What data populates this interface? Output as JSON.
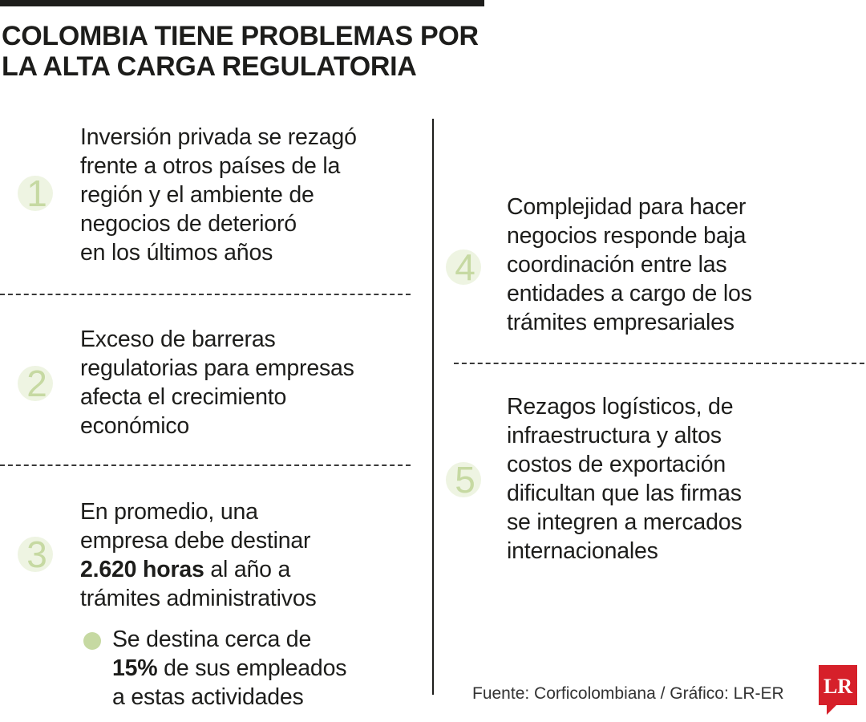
{
  "title": {
    "line1": "COLOMBIA TIENE PROBLEMAS POR",
    "line2": "LA ALTA CARGA REGULATORIA"
  },
  "items": [
    {
      "number": "1",
      "text": "Inversión privada se rezagó frente a otros países de la región y el ambiente de negocios de deterioró en los últimos años",
      "lines": [
        "Inversión privada se rezagó",
        "frente a otros países de la",
        "región y el ambiente de",
        "negocios de deterioró",
        "en los últimos años"
      ]
    },
    {
      "number": "2",
      "lines": [
        "Exceso de barreras",
        "regulatorias para empresas",
        "afecta el crecimiento",
        "económico"
      ]
    },
    {
      "number": "3",
      "line1": "En promedio, una",
      "line2": "empresa debe destinar",
      "bold": "2.620 horas",
      "line3_rest": " al año a",
      "line4": "trámites administrativos",
      "sub": {
        "line1": "Se destina cerca de",
        "bold": "15%",
        "line2_rest": " de sus empleados",
        "line3": "a estas actividades"
      }
    },
    {
      "number": "4",
      "lines": [
        "Complejidad para hacer",
        "negocios responde baja",
        "coordinación entre las",
        "entidades a cargo de los",
        "trámites empresariales"
      ]
    },
    {
      "number": "5",
      "lines": [
        "Rezagos logísticos, de",
        "infraestructura y altos",
        "costos de exportación",
        "dificultan que las firmas",
        "se integren a mercados",
        "internacionales"
      ]
    }
  ],
  "source": "Fuente: Corficolombiana / Gráfico: LR-ER",
  "logo": {
    "text": "LR",
    "color": "#d6202a"
  },
  "colors": {
    "accent": "#c6d9a2",
    "text": "#1d1d1b",
    "logo": "#d6202a"
  }
}
